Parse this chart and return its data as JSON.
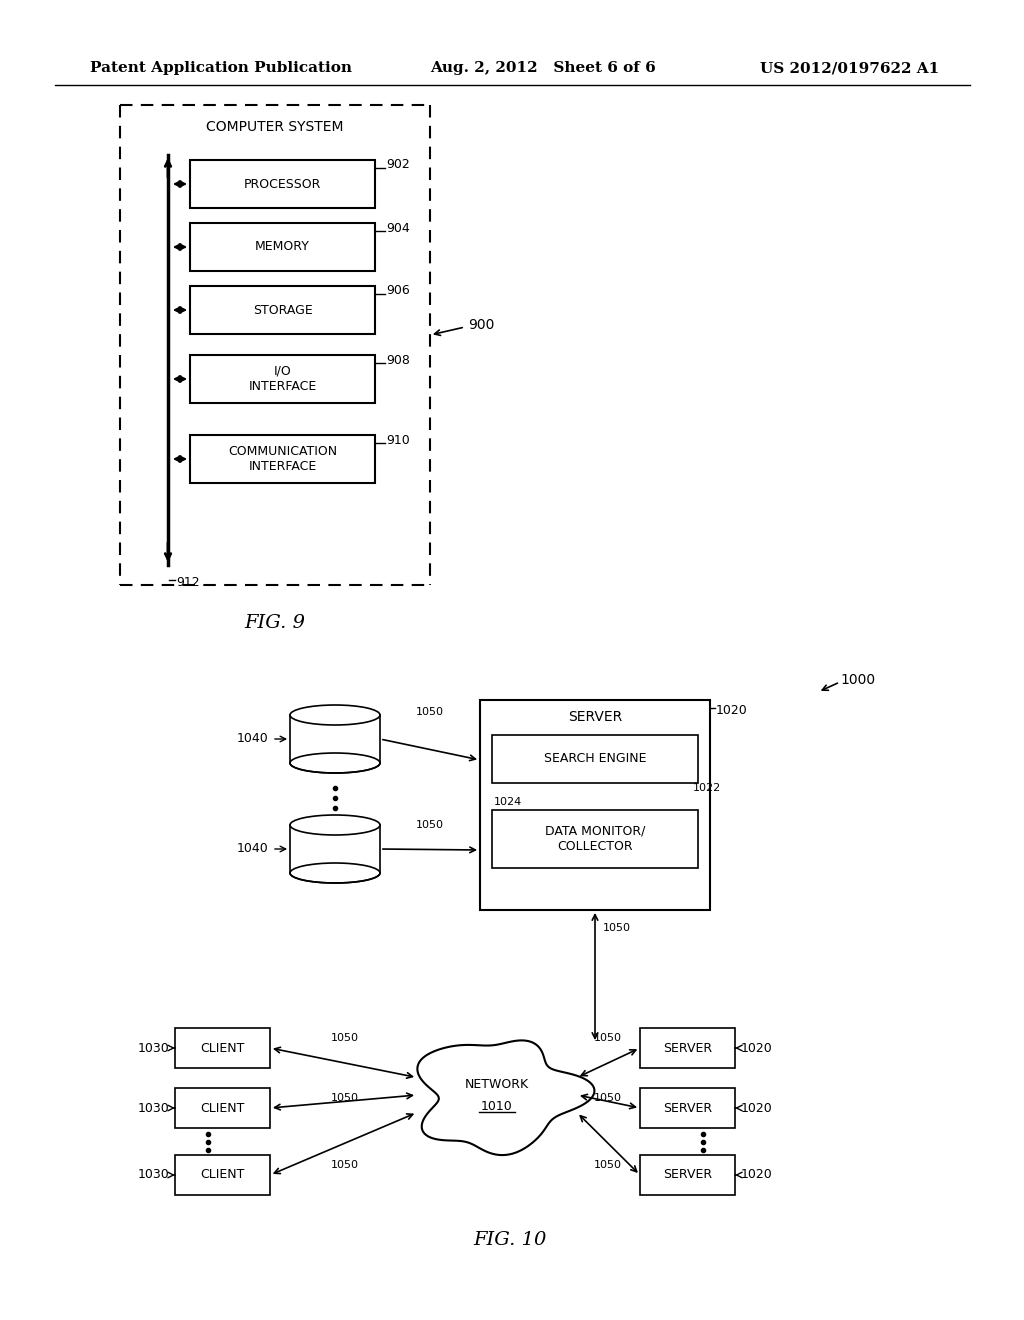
{
  "header_left": "Patent Application Publication",
  "header_mid": "Aug. 2, 2012   Sheet 6 of 6",
  "header_right": "US 2012/0197622 A1",
  "fig9_title": "COMPUTER SYSTEM",
  "fig9_label": "900",
  "fig9_bus_label": "912",
  "fig9_boxes": [
    {
      "label": "PROCESSOR",
      "ref": "902"
    },
    {
      "label": "MEMORY",
      "ref": "904"
    },
    {
      "label": "STORAGE",
      "ref": "906"
    },
    {
      "label": "I/O\nINTERFACE",
      "ref": "908"
    },
    {
      "label": "COMMUNICATION\nINTERFACE",
      "ref": "910"
    }
  ],
  "fig9_caption": "FIG. 9",
  "fig10_caption": "FIG. 10",
  "fig10_label": "1000",
  "fig10_network_label1": "NETWORK",
  "fig10_network_label2": "1010",
  "fig10_server_box_label": "SERVER",
  "fig10_server_box_ref": "1020",
  "fig10_search_engine_label": "SEARCH ENGINE",
  "fig10_search_engine_ref": "1022",
  "fig10_data_monitor_label": "DATA MONITOR/\nCOLLECTOR",
  "fig10_data_monitor_ref": "1024",
  "fig10_db_ref": "1040",
  "fig10_link_label": "1050",
  "fig10_clients": [
    "CLIENT",
    "CLIENT",
    "CLIENT"
  ],
  "fig10_client_refs": [
    "1030",
    "1030",
    "1030"
  ],
  "fig10_servers": [
    "SERVER",
    "SERVER",
    "SERVER"
  ],
  "fig10_server_refs": [
    "1020",
    "1020",
    "1020"
  ],
  "bg_color": "#ffffff",
  "line_color": "#000000"
}
